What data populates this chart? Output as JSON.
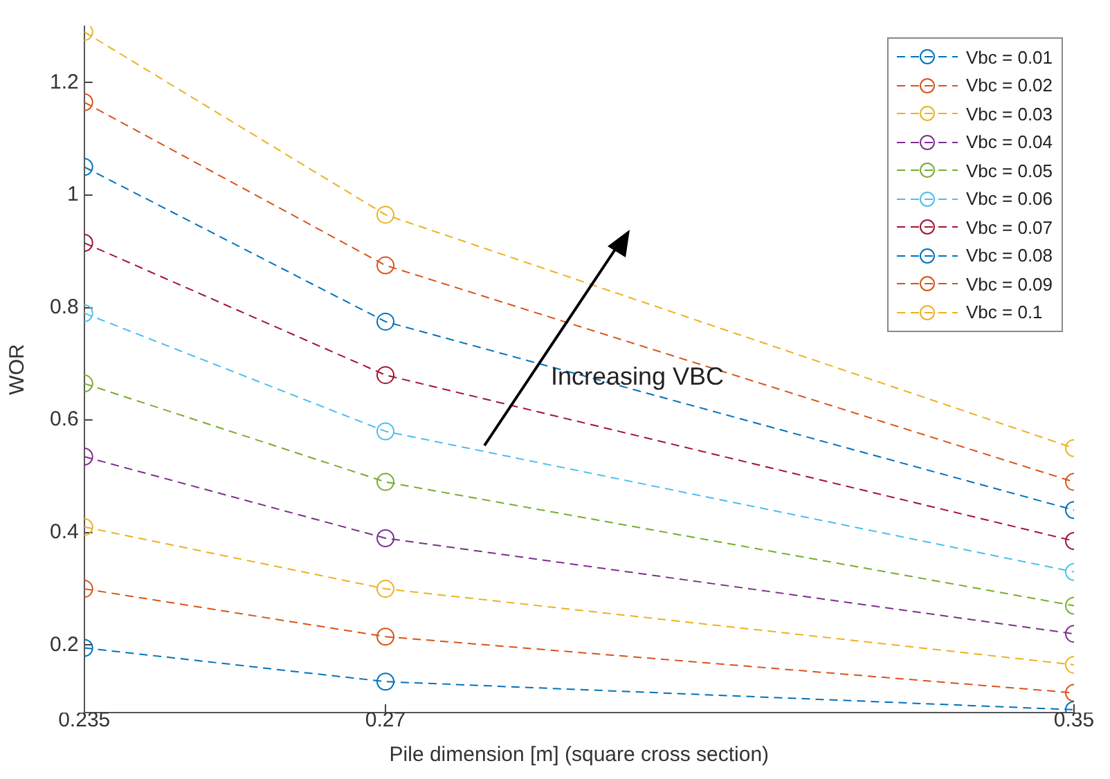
{
  "chart_data": {
    "type": "line",
    "xlabel": "Pile dimension [m] (square cross section)",
    "ylabel": "WOR",
    "x": [
      0.235,
      0.27,
      0.35
    ],
    "series": [
      {
        "name": "Vbc = 0.01",
        "color": "#0072bd",
        "values": [
          0.195,
          0.135,
          0.085
        ]
      },
      {
        "name": "Vbc = 0.02",
        "color": "#d95319",
        "values": [
          0.3,
          0.215,
          0.115
        ]
      },
      {
        "name": "Vbc = 0.03",
        "color": "#edb120",
        "values": [
          0.41,
          0.3,
          0.165
        ]
      },
      {
        "name": "Vbc = 0.04",
        "color": "#7e2f8e",
        "values": [
          0.535,
          0.39,
          0.22
        ]
      },
      {
        "name": "Vbc = 0.05",
        "color": "#77ac30",
        "values": [
          0.665,
          0.49,
          0.27
        ]
      },
      {
        "name": "Vbc = 0.06",
        "color": "#4dbeee",
        "values": [
          0.79,
          0.58,
          0.33
        ]
      },
      {
        "name": "Vbc = 0.07",
        "color": "#a2142f",
        "values": [
          0.915,
          0.68,
          0.385
        ]
      },
      {
        "name": "Vbc = 0.08",
        "color": "#0072bd",
        "values": [
          1.05,
          0.775,
          0.44
        ]
      },
      {
        "name": "Vbc = 0.09",
        "color": "#d95319",
        "values": [
          1.165,
          0.875,
          0.49
        ]
      },
      {
        "name": "Vbc = 0.1",
        "color": "#edb120",
        "values": [
          1.29,
          0.965,
          0.55
        ]
      }
    ],
    "xlim": [
      0.235,
      0.35
    ],
    "xticks": [
      0.235,
      0.27,
      0.35
    ],
    "ylim": [
      0.08,
      1.3
    ],
    "yticks": [
      0.2,
      0.4,
      0.6,
      0.8,
      1,
      1.2
    ],
    "grid": false,
    "legend": "top right",
    "marker": "circle",
    "line_style": "dashed",
    "annotations": [
      "Increasing VBC"
    ]
  }
}
